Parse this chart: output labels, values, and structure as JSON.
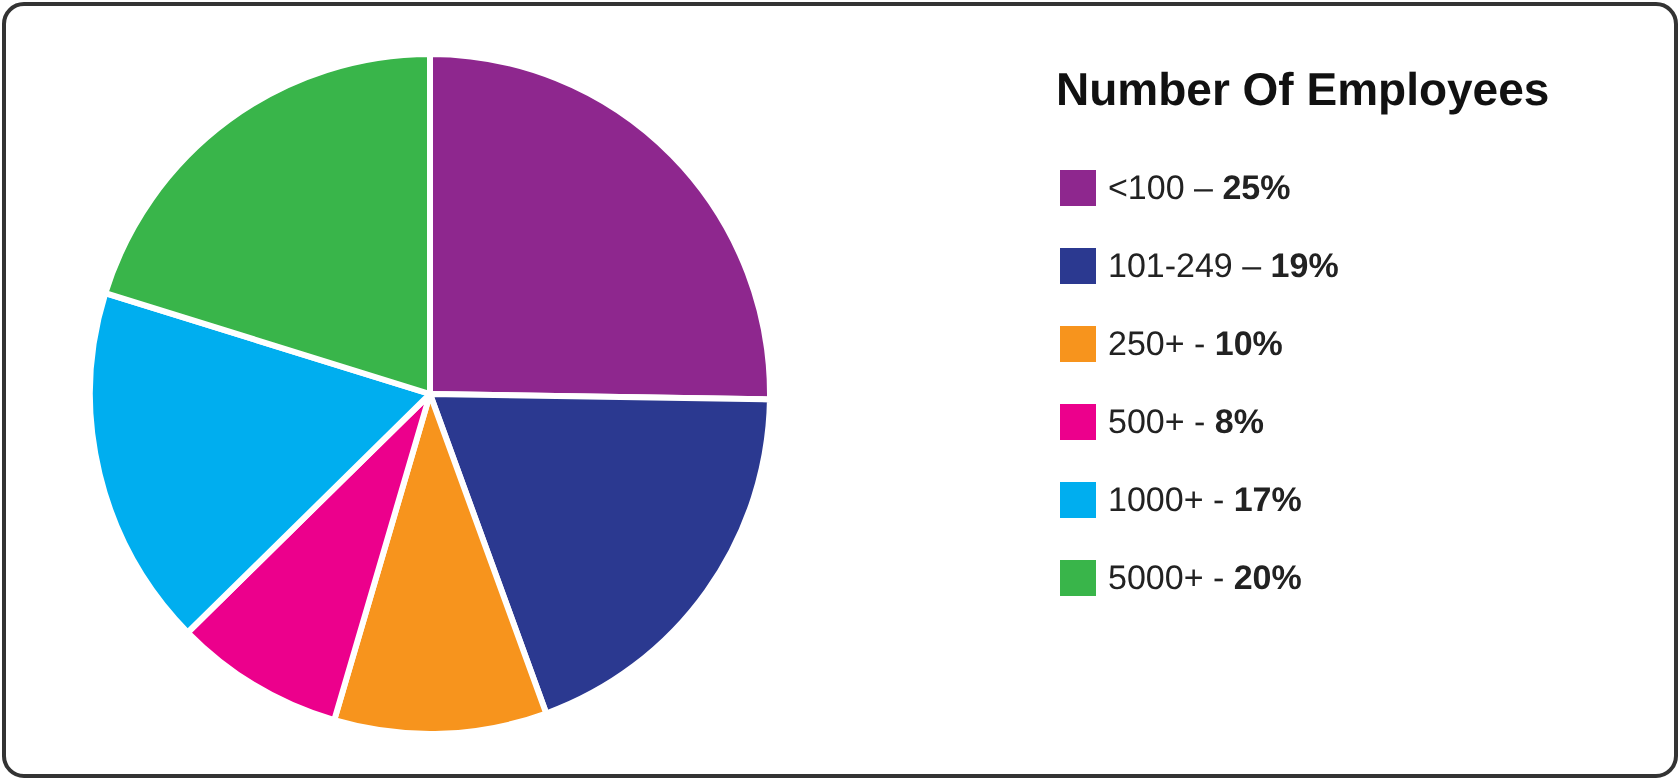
{
  "chart_data": {
    "type": "pie",
    "legend_title": "Number Of Employees",
    "categories": [
      "<100 –",
      "101-249 –",
      "250+ -",
      "500+ -",
      "1000+ -",
      "5000+ -"
    ],
    "values": [
      25,
      19,
      10,
      8,
      17,
      20
    ],
    "value_labels": [
      "25%",
      "19%",
      "10%",
      "8%",
      "17%",
      "20%"
    ],
    "colors": [
      "#8e278e",
      "#2b3990",
      "#f7941d",
      "#ec008c",
      "#00aeef",
      "#39b54a"
    ],
    "legend": "right"
  }
}
